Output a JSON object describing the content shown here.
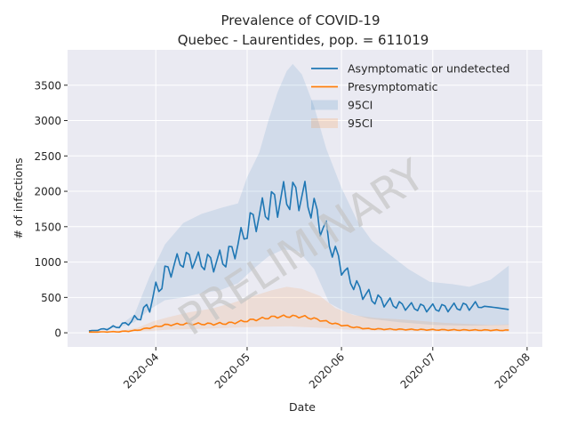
{
  "chart_data": {
    "type": "line",
    "title": "Prevalence of COVID-19",
    "subtitle": "Quebec - Laurentides, pop. = 611019",
    "xlabel": "Date",
    "ylabel": "# of infections",
    "watermark": "PRELIMINARY",
    "x_range": [
      "2020-03-03",
      "2020-08-06"
    ],
    "ylim": [
      -200,
      4000
    ],
    "x_ticks": [
      "2020-04",
      "2020-05",
      "2020-06",
      "2020-07",
      "2020-08"
    ],
    "y_ticks": [
      0,
      500,
      1000,
      1500,
      2000,
      2500,
      3000,
      3500
    ],
    "grid": true,
    "legend_position": "top-right",
    "colors": {
      "background": "#eaeaf2",
      "grid": "#ffffff",
      "asymptomatic": "#1f77b4",
      "presymptomatic": "#ff7f0e"
    },
    "series": [
      {
        "name": "Asymptomatic or undetected",
        "color": "#1f77b4",
        "points": [
          [
            "2020-03-10",
            25
          ],
          [
            "2020-03-15",
            50
          ],
          [
            "2020-03-20",
            95
          ],
          [
            "2020-03-24",
            160
          ],
          [
            "2020-03-28",
            280
          ],
          [
            "2020-04-01",
            560
          ],
          [
            "2020-04-04",
            830
          ],
          [
            "2020-04-08",
            1000
          ],
          [
            "2020-04-12",
            1050
          ],
          [
            "2020-04-16",
            1000
          ],
          [
            "2020-04-20",
            1000
          ],
          [
            "2020-04-24",
            1050
          ],
          [
            "2020-04-28",
            1250
          ],
          [
            "2020-05-02",
            1550
          ],
          [
            "2020-05-06",
            1700
          ],
          [
            "2020-05-10",
            1850
          ],
          [
            "2020-05-14",
            1920
          ],
          [
            "2020-05-18",
            1960
          ],
          [
            "2020-05-21",
            1880
          ],
          [
            "2020-05-24",
            1650
          ],
          [
            "2020-05-27",
            1400
          ],
          [
            "2020-05-30",
            1100
          ],
          [
            "2020-06-03",
            800
          ],
          [
            "2020-06-07",
            600
          ],
          [
            "2020-06-11",
            490
          ],
          [
            "2020-06-16",
            430
          ],
          [
            "2020-06-21",
            380
          ],
          [
            "2020-06-26",
            360
          ],
          [
            "2020-07-01",
            350
          ],
          [
            "2020-07-06",
            355
          ],
          [
            "2020-07-11",
            370
          ],
          [
            "2020-07-16",
            385
          ],
          [
            "2020-07-21",
            360
          ],
          [
            "2020-07-26",
            330
          ]
        ],
        "weekly_oscillation": [
          [
            "2020-03-10",
            0
          ],
          [
            "2020-03-24",
            40
          ],
          [
            "2020-04-01",
            160
          ],
          [
            "2020-04-08",
            120
          ],
          [
            "2020-04-28",
            160
          ],
          [
            "2020-05-10",
            240
          ],
          [
            "2020-05-21",
            240
          ],
          [
            "2020-06-03",
            120
          ],
          [
            "2020-06-21",
            60
          ],
          [
            "2020-07-16",
            60
          ],
          [
            "2020-07-18",
            0
          ],
          [
            "2020-07-26",
            0
          ]
        ]
      },
      {
        "name": "Presymptomatic",
        "color": "#ff7f0e",
        "points": [
          [
            "2020-03-10",
            10
          ],
          [
            "2020-03-20",
            15
          ],
          [
            "2020-03-25",
            30
          ],
          [
            "2020-03-30",
            70
          ],
          [
            "2020-04-04",
            110
          ],
          [
            "2020-04-10",
            125
          ],
          [
            "2020-04-20",
            125
          ],
          [
            "2020-04-25",
            135
          ],
          [
            "2020-04-30",
            165
          ],
          [
            "2020-05-05",
            195
          ],
          [
            "2020-05-10",
            225
          ],
          [
            "2020-05-15",
            235
          ],
          [
            "2020-05-20",
            225
          ],
          [
            "2020-05-25",
            180
          ],
          [
            "2020-05-30",
            125
          ],
          [
            "2020-06-05",
            80
          ],
          [
            "2020-06-10",
            55
          ],
          [
            "2020-06-20",
            48
          ],
          [
            "2020-07-01",
            42
          ],
          [
            "2020-07-15",
            38
          ],
          [
            "2020-07-26",
            35
          ]
        ],
        "weekly_oscillation": [
          [
            "2020-03-10",
            0
          ],
          [
            "2020-04-10",
            15
          ],
          [
            "2020-05-15",
            20
          ],
          [
            "2020-06-10",
            8
          ],
          [
            "2020-07-26",
            6
          ]
        ]
      }
    ],
    "confidence_bands": [
      {
        "name": "95CI",
        "color": "#1f77b4",
        "opacity": 0.12,
        "upper": [
          [
            "2020-03-10",
            30
          ],
          [
            "2020-03-20",
            100
          ],
          [
            "2020-03-25",
            260
          ],
          [
            "2020-03-30",
            800
          ],
          [
            "2020-04-04",
            1250
          ],
          [
            "2020-04-10",
            1550
          ],
          [
            "2020-04-16",
            1680
          ],
          [
            "2020-04-22",
            1760
          ],
          [
            "2020-04-28",
            1830
          ],
          [
            "2020-05-01",
            2200
          ],
          [
            "2020-05-05",
            2550
          ],
          [
            "2020-05-08",
            3000
          ],
          [
            "2020-05-11",
            3400
          ],
          [
            "2020-05-14",
            3700
          ],
          [
            "2020-05-16",
            3800
          ],
          [
            "2020-05-19",
            3650
          ],
          [
            "2020-05-23",
            3200
          ],
          [
            "2020-05-27",
            2600
          ],
          [
            "2020-06-01",
            2050
          ],
          [
            "2020-06-06",
            1600
          ],
          [
            "2020-06-11",
            1300
          ],
          [
            "2020-06-17",
            1100
          ],
          [
            "2020-06-23",
            900
          ],
          [
            "2020-06-30",
            720
          ],
          [
            "2020-07-07",
            690
          ],
          [
            "2020-07-13",
            650
          ],
          [
            "2020-07-20",
            750
          ],
          [
            "2020-07-26",
            950
          ]
        ],
        "lower": [
          [
            "2020-03-10",
            20
          ],
          [
            "2020-03-20",
            80
          ],
          [
            "2020-03-25",
            150
          ],
          [
            "2020-03-30",
            330
          ],
          [
            "2020-04-04",
            460
          ],
          [
            "2020-04-10",
            500
          ],
          [
            "2020-04-16",
            560
          ],
          [
            "2020-04-22",
            600
          ],
          [
            "2020-04-28",
            700
          ],
          [
            "2020-05-03",
            900
          ],
          [
            "2020-05-08",
            1080
          ],
          [
            "2020-05-13",
            1180
          ],
          [
            "2020-05-18",
            1150
          ],
          [
            "2020-05-23",
            900
          ],
          [
            "2020-05-28",
            420
          ],
          [
            "2020-06-03",
            280
          ],
          [
            "2020-06-10",
            200
          ],
          [
            "2020-06-20",
            150
          ],
          [
            "2020-07-01",
            110
          ],
          [
            "2020-07-13",
            100
          ],
          [
            "2020-07-26",
            110
          ]
        ]
      },
      {
        "name": "95CI",
        "color": "#ff7f0e",
        "opacity": 0.12,
        "upper": [
          [
            "2020-03-10",
            12
          ],
          [
            "2020-03-20",
            22
          ],
          [
            "2020-03-26",
            70
          ],
          [
            "2020-03-31",
            160
          ],
          [
            "2020-04-05",
            220
          ],
          [
            "2020-04-12",
            290
          ],
          [
            "2020-04-19",
            340
          ],
          [
            "2020-04-26",
            420
          ],
          [
            "2020-05-03",
            520
          ],
          [
            "2020-05-09",
            600
          ],
          [
            "2020-05-14",
            650
          ],
          [
            "2020-05-19",
            620
          ],
          [
            "2020-05-25",
            520
          ],
          [
            "2020-05-30",
            350
          ],
          [
            "2020-06-05",
            250
          ],
          [
            "2020-06-12",
            210
          ],
          [
            "2020-06-22",
            185
          ],
          [
            "2020-07-05",
            140
          ],
          [
            "2020-07-20",
            110
          ],
          [
            "2020-07-26",
            120
          ]
        ],
        "lower": [
          [
            "2020-03-10",
            8
          ],
          [
            "2020-03-20",
            10
          ],
          [
            "2020-03-30",
            25
          ],
          [
            "2020-04-05",
            45
          ],
          [
            "2020-04-15",
            55
          ],
          [
            "2020-04-25",
            70
          ],
          [
            "2020-05-05",
            85
          ],
          [
            "2020-05-15",
            90
          ],
          [
            "2020-05-25",
            70
          ],
          [
            "2020-06-05",
            40
          ],
          [
            "2020-06-20",
            25
          ],
          [
            "2020-07-26",
            15
          ]
        ]
      }
    ]
  }
}
